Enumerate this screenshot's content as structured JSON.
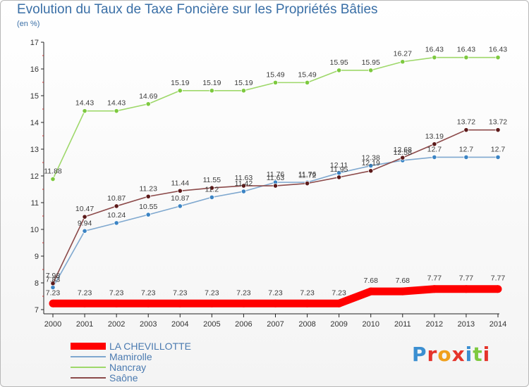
{
  "header": {
    "title": "Evolution du Taux de Taxe Foncière sur les Propriétés Bâties",
    "unit": "(en %)"
  },
  "chart_data": {
    "type": "line",
    "title": "Evolution du Taux de Taxe Foncière sur les Propriétés Bâties",
    "ylabel": "(en %)",
    "xlabel": "",
    "categories": [
      "2000",
      "2001",
      "2002",
      "2003",
      "2004",
      "2005",
      "2006",
      "2007",
      "2008",
      "2009",
      "2010",
      "2011",
      "2012",
      "2013",
      "2014"
    ],
    "ylim": [
      7,
      17
    ],
    "yticks": [
      7,
      8,
      9,
      10,
      11,
      12,
      13,
      14,
      15,
      16,
      17
    ],
    "series": [
      {
        "name": "LA CHEVILLOTTE",
        "color": "#ff0000",
        "marker": "#ff0000",
        "values": [
          7.23,
          7.23,
          7.23,
          7.23,
          7.23,
          7.23,
          7.23,
          7.23,
          7.23,
          7.23,
          7.68,
          7.68,
          7.77,
          7.77,
          7.77
        ],
        "labels": [
          "7.23",
          "7.23",
          "7.23",
          "7.23",
          "7.23",
          "7.23",
          "7.23",
          "7.23",
          "7.23",
          "7.23",
          "7.68",
          "7.68",
          "7.77",
          "7.77",
          "7.77"
        ]
      },
      {
        "name": "Mamirolle",
        "color": "#7fa8cf",
        "marker": "#3b84c4",
        "values": [
          7.83,
          9.94,
          10.24,
          10.55,
          10.87,
          11.2,
          11.42,
          11.76,
          11.76,
          12.11,
          12.38,
          12.58,
          12.7,
          12.7,
          12.7
        ],
        "labels": [
          "7.83",
          "9.94",
          "10.24",
          "10.55",
          "10.87",
          "11.2",
          "11.42",
          "11.76",
          "11.76",
          "12.11",
          "12.38",
          "12.58",
          "12.7",
          "12.7",
          "12.7"
        ]
      },
      {
        "name": "Nancray",
        "color": "#9ed86a",
        "marker": "#7dc93f",
        "values": [
          11.88,
          14.43,
          14.43,
          14.69,
          15.19,
          15.19,
          15.19,
          15.49,
          15.49,
          15.95,
          15.95,
          16.27,
          16.43,
          16.43,
          16.43
        ],
        "labels": [
          "11.88",
          "14.43",
          "14.43",
          "14.69",
          "15.19",
          "15.19",
          "15.19",
          "15.49",
          "15.49",
          "15.95",
          "15.95",
          "16.27",
          "16.43",
          "16.43",
          "16.43"
        ]
      },
      {
        "name": "Saône",
        "color": "#8c4a4a",
        "marker": "#5c1a1a",
        "values": [
          7.98,
          10.47,
          10.87,
          11.23,
          11.44,
          11.55,
          11.63,
          11.63,
          11.72,
          11.95,
          12.19,
          12.68,
          13.19,
          13.72,
          13.72
        ],
        "labels": [
          "7.98",
          "10.47",
          "10.87",
          "11.23",
          "11.44",
          "11.55",
          "11.63",
          "11.63",
          "11.72",
          "11.95",
          "12.19",
          "12.68",
          "13.19",
          "13.72",
          "13.72"
        ]
      }
    ]
  },
  "legend": {
    "items": [
      {
        "label": "LA CHEVILLOTTE",
        "color": "#ff0000",
        "weight": "thick"
      },
      {
        "label": "Mamirolle",
        "color": "#7fa8cf",
        "weight": "thin"
      },
      {
        "label": "Nancray",
        "color": "#9ed86a",
        "weight": "thin"
      },
      {
        "label": "Saône",
        "color": "#8c4a4a",
        "weight": "thin"
      }
    ]
  },
  "brand": {
    "letters": [
      "P",
      "r",
      "o",
      "x",
      "i",
      "t",
      "i"
    ],
    "colors": [
      "#3b8fd1",
      "#e5342b",
      "#f0a01c",
      "#e5342b",
      "#3b8fd1",
      "#7dc93f",
      "#e5342b"
    ]
  }
}
